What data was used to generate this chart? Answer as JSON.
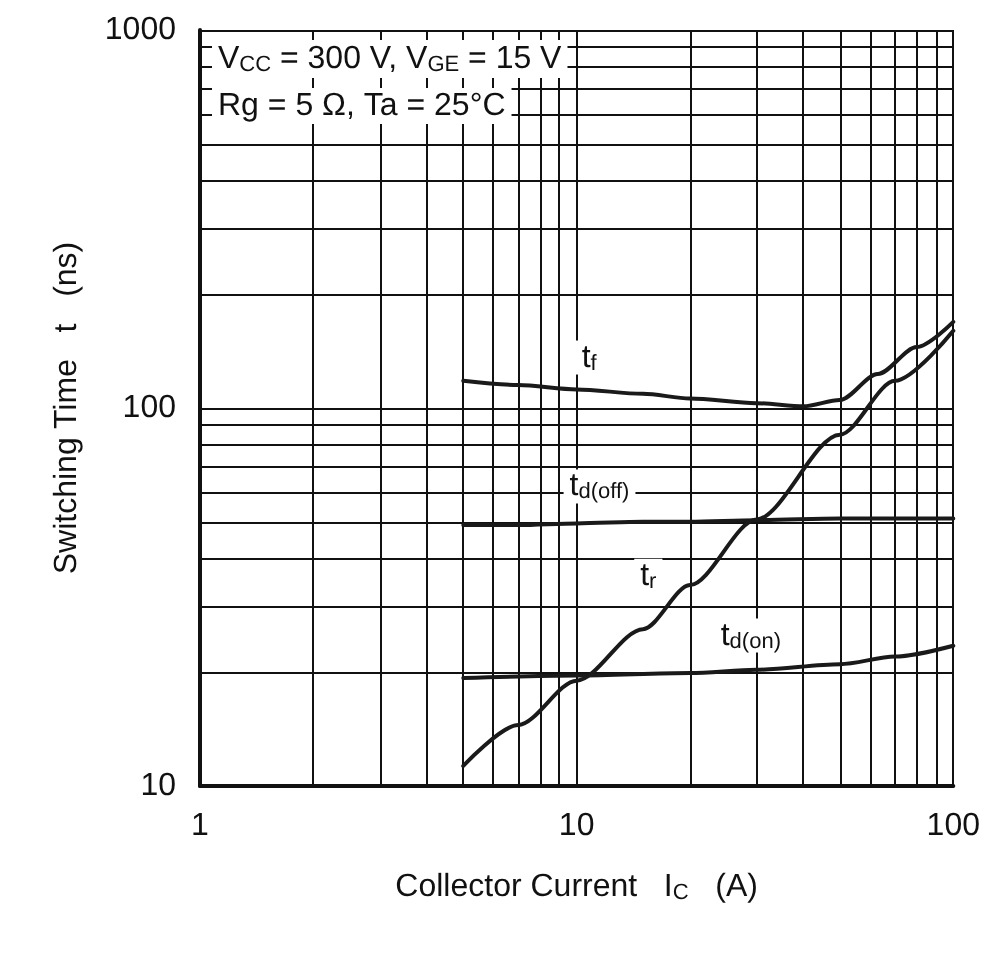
{
  "chart_data": {
    "type": "line",
    "xlabel": "Collector Current   I$_{C}$   (A)",
    "ylabel": "Switching Time   t   (ns)",
    "log": "xy",
    "grid": true,
    "marker": "none",
    "line_style": "solid",
    "xlim": [
      1,
      100
    ],
    "xticks": [
      1,
      {
        "value": 2,
        "label": null
      },
      {
        "value": 3,
        "label": null
      },
      {
        "value": 4,
        "label": null
      },
      {
        "value": 5,
        "label": null
      },
      {
        "value": 6,
        "label": null
      },
      {
        "value": 7,
        "label": null
      },
      {
        "value": 8,
        "label": null
      },
      {
        "value": 9,
        "label": null
      },
      10,
      {
        "value": 20,
        "label": null
      },
      {
        "value": 30,
        "label": null
      },
      {
        "value": 40,
        "label": null
      },
      {
        "value": 50,
        "label": null
      },
      {
        "value": 60,
        "label": null
      },
      {
        "value": 70,
        "label": null
      },
      {
        "value": 80,
        "label": null
      },
      {
        "value": 90,
        "label": null
      },
      100
    ],
    "ylim": [
      10,
      1000
    ],
    "yticks": [
      10,
      {
        "value": 20,
        "label": null
      },
      {
        "value": 30,
        "label": null
      },
      {
        "value": 40,
        "label": null
      },
      {
        "value": 50,
        "label": null
      },
      {
        "value": 60,
        "label": null
      },
      {
        "value": 70,
        "label": null
      },
      {
        "value": 80,
        "label": null
      },
      {
        "value": 90,
        "label": null
      },
      100,
      {
        "value": 200,
        "label": null
      },
      {
        "value": 300,
        "label": null
      },
      {
        "value": 400,
        "label": null
      },
      {
        "value": 500,
        "label": null
      },
      {
        "value": 600,
        "label": null
      },
      {
        "value": 700,
        "label": null
      },
      {
        "value": 800,
        "label": null
      },
      {
        "value": 900,
        "label": null
      },
      1000
    ],
    "series": [
      {
        "color": "#1a1a1a",
        "x": [
          5,
          7,
          10,
          15,
          20,
          30,
          40,
          50,
          63,
          80,
          100
        ],
        "values": [
          118,
          115,
          112,
          109,
          106,
          103,
          101,
          105,
          123,
          145,
          169
        ]
      },
      {
        "color": "#1a1a1a",
        "x": [
          5,
          7,
          10,
          15,
          20,
          30,
          50,
          70,
          100
        ],
        "values": [
          49,
          49,
          49.5,
          50,
          50,
          50.5,
          51,
          51,
          51
        ]
      },
      {
        "color": "#1a1a1a",
        "x": [
          5,
          7,
          10,
          15,
          20,
          30,
          50,
          70,
          100
        ],
        "values": [
          11.3,
          14.5,
          19,
          26,
          34,
          50.7,
          85,
          118,
          160
        ]
      },
      {
        "color": "#1a1a1a",
        "x": [
          5,
          10,
          20,
          30,
          50,
          70,
          100
        ],
        "values": [
          19.3,
          19.6,
          19.9,
          20.3,
          21,
          22,
          23.5
        ]
      }
    ],
    "annotations": [
      "V$_{CC}$ = 300 V, V$_{GE}$ = 15 V",
      "Rg = 5 Ω, Ta = 25°C",
      {
        "text": "t$_{f}$",
        "x": 10.8,
        "y": 136
      },
      {
        "text": "t$_{d(off)}$",
        "x": 11.5,
        "y": 62
      },
      {
        "text": "t$_{r}$",
        "x": 15.5,
        "y": 36
      },
      {
        "text": "t$_{d(on)}$",
        "x": 29,
        "y": 25
      }
    ]
  }
}
